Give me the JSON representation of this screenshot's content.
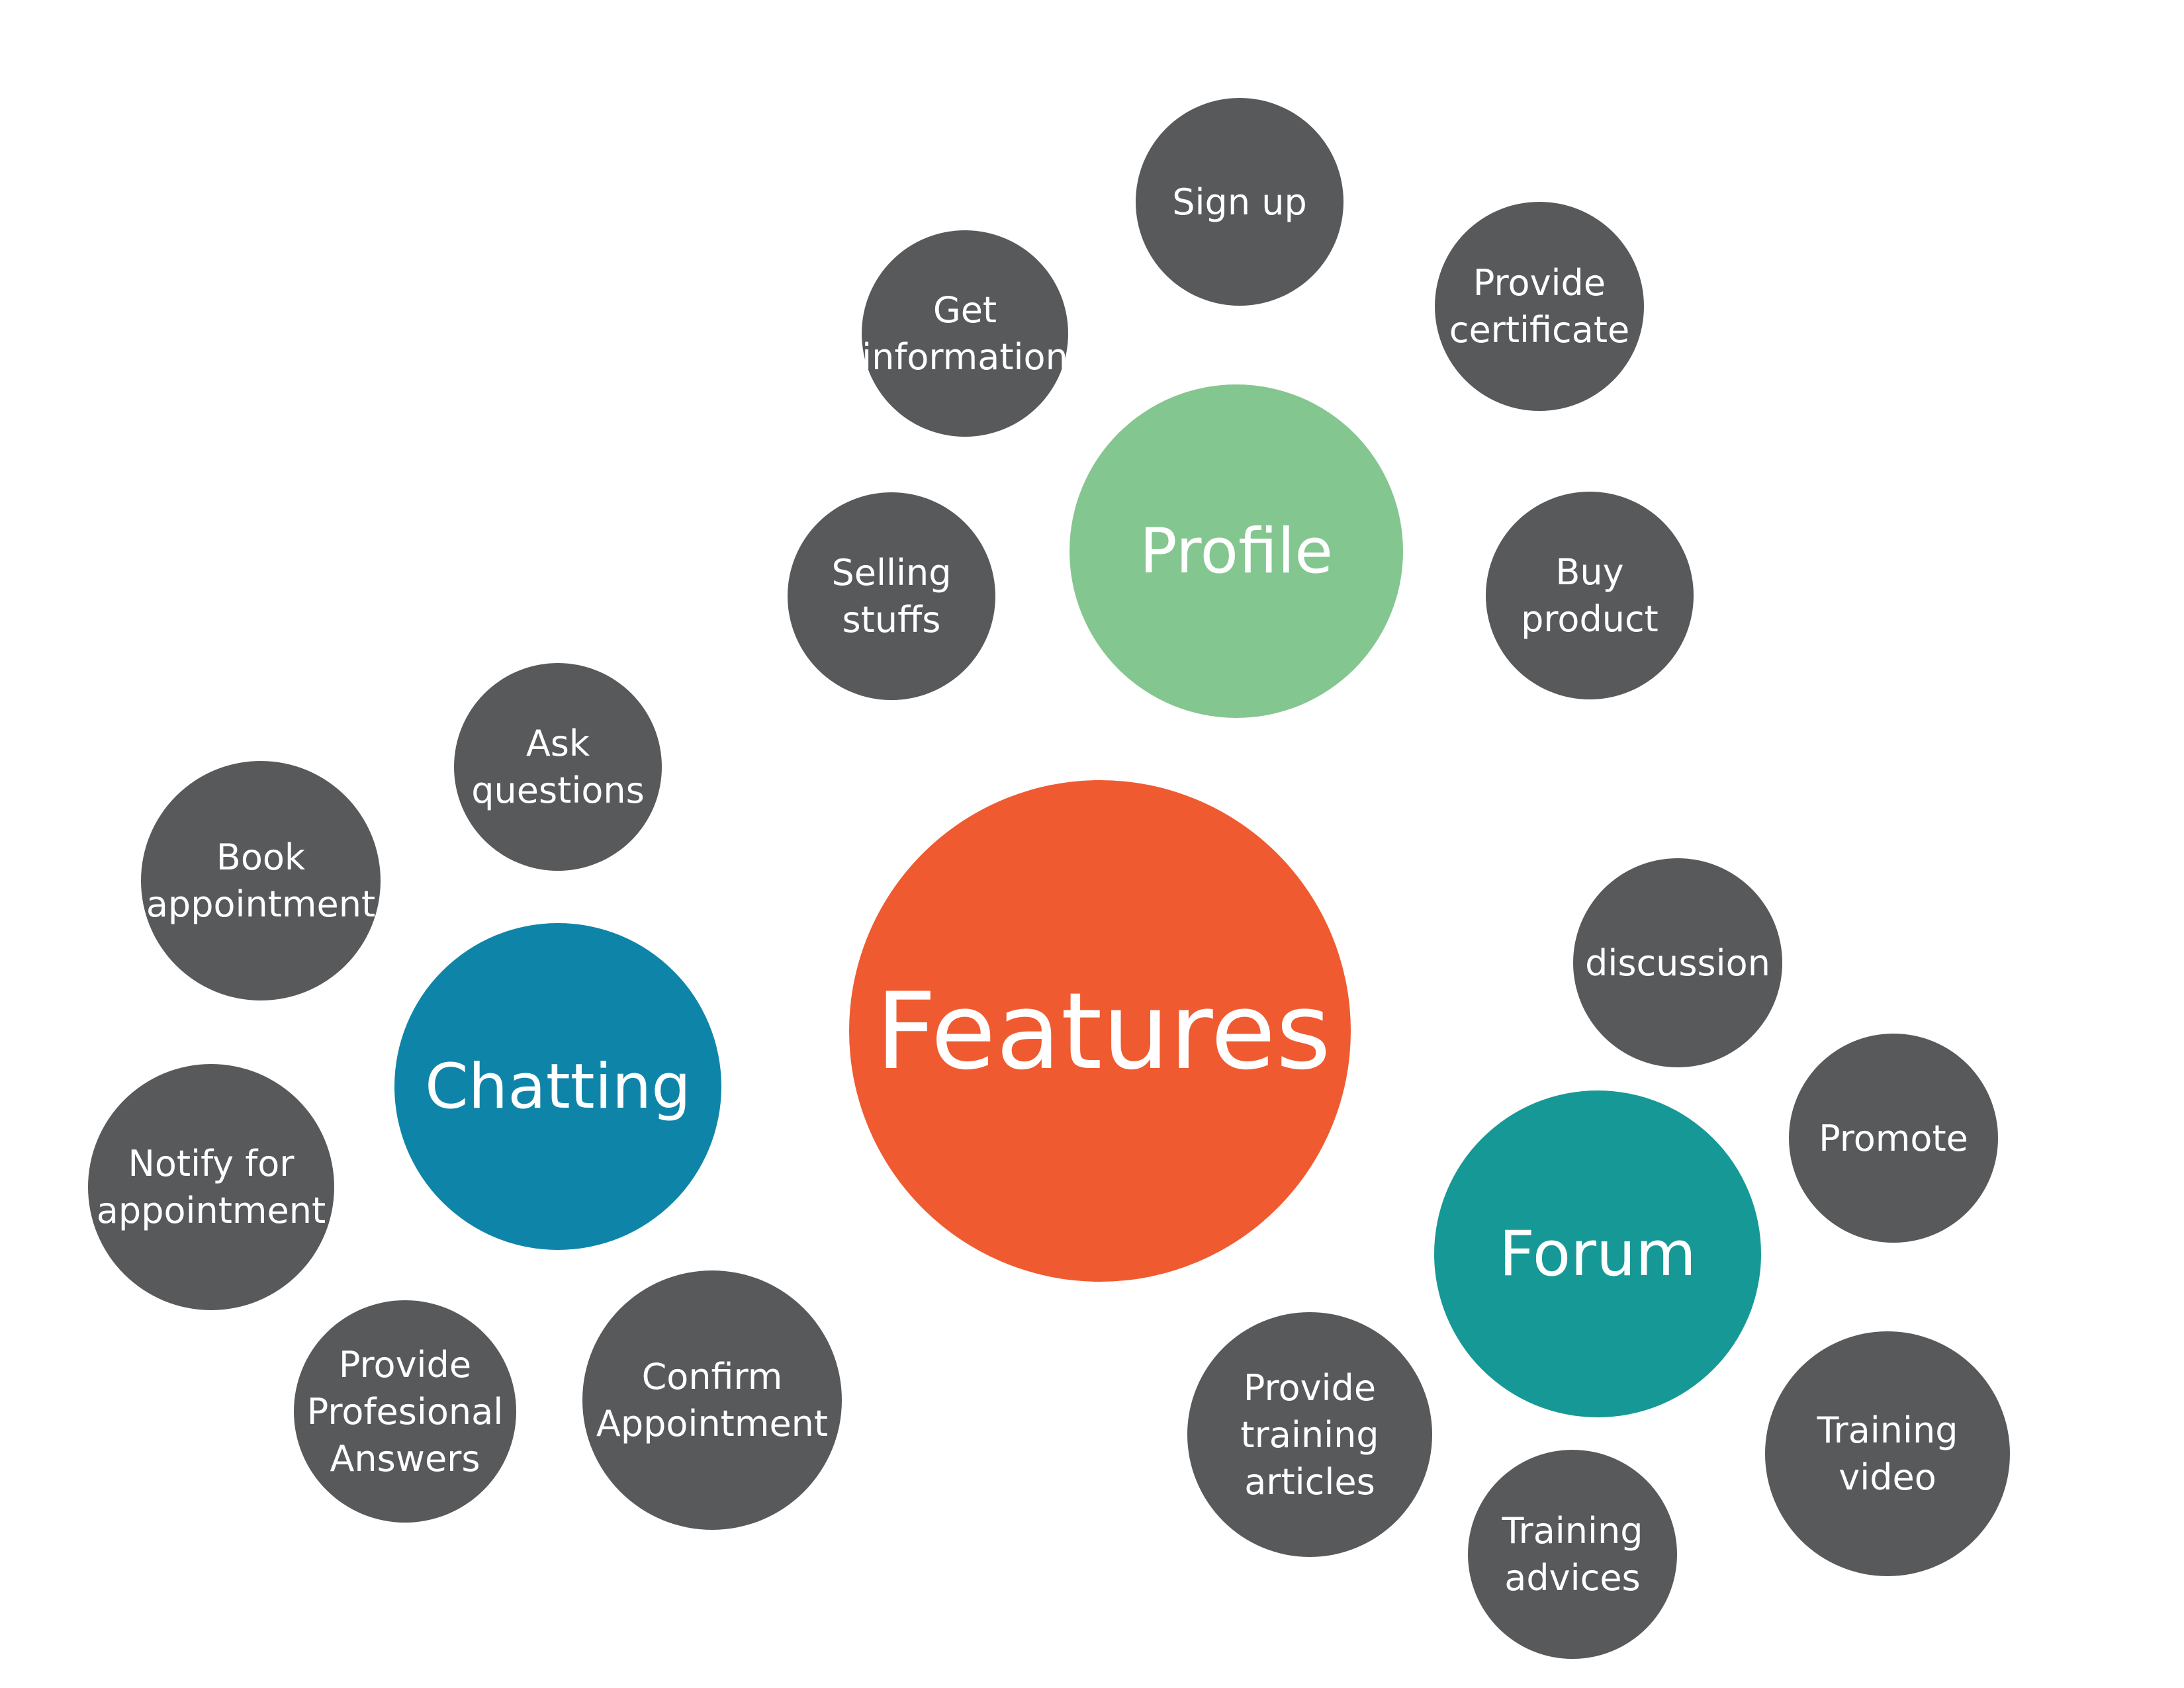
{
  "colors": {
    "core": "#f05a30",
    "profile": "#84c68f",
    "chatting": "#0e85a8",
    "forum": "#169996",
    "leaf": "#58595b",
    "text": "#ffffff",
    "background": "#ffffff"
  },
  "center": {
    "label": "Features"
  },
  "categories": {
    "profile": {
      "label": "Profile",
      "items": [
        "Sign up",
        "Get\ninformation",
        "Provide\ncertificate",
        "Selling\nstuffs",
        "Buy\nproduct"
      ]
    },
    "chatting": {
      "label": "Chatting",
      "items": [
        "Ask\nquestions",
        "Book\nappointment",
        "Notify for\nappointment",
        "Provide\nProfesional\nAnswers",
        "Confirm\nAppointment"
      ]
    },
    "forum": {
      "label": "Forum",
      "items": [
        "discussion",
        "Promote",
        "Provide\ntraining\narticles",
        "Training\nadvices",
        "Training\nvideo"
      ]
    }
  }
}
